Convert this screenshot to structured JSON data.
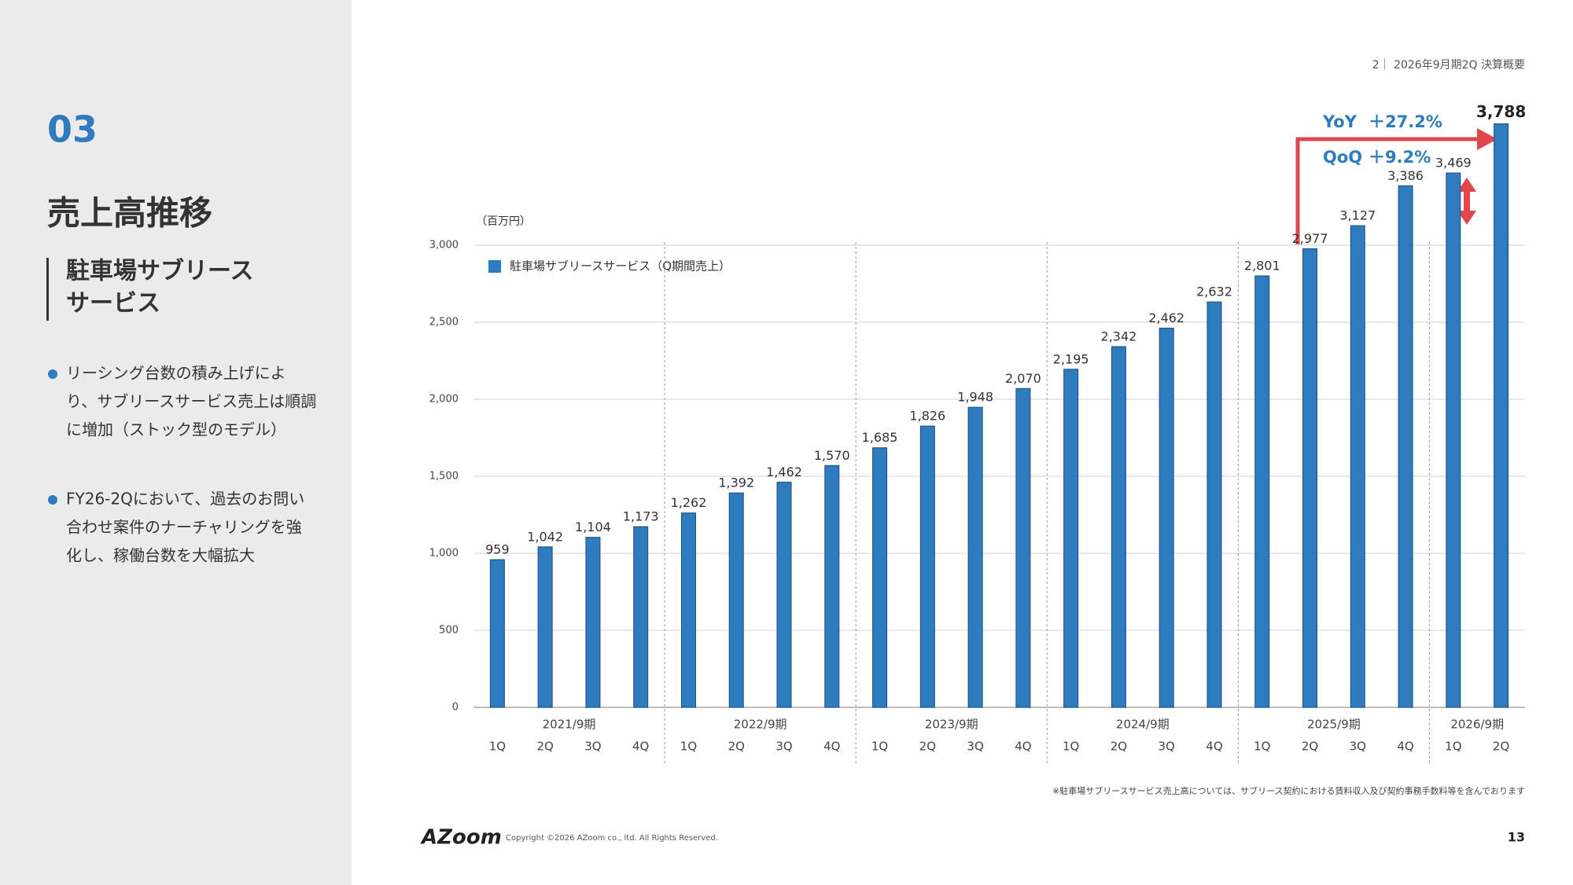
{
  "slide": {
    "header": "2｜ 2026年9月期2Q 決算概要",
    "section_number": "03",
    "title": "売上高推移",
    "subtitle_lines": [
      "駐車場サブリース",
      "サービス"
    ],
    "bullets": [
      [
        "リーシング台数の積み上げによ",
        "り、サブリースサービス売上は順調",
        "に増加（ストック型のモデル）"
      ],
      [
        "FY26-2Qにおいて、過去のお問い",
        "合わせ案件のナーチャリングを強",
        "化し、稼働台数を大幅拡大"
      ]
    ],
    "footnote": "※駐車場サブリースサービス売上高については、サブリース契約における賃料収入及び契約事務手数料等を含んでおります",
    "logo": "AZoom",
    "copyright": "Copyright ©2026 AZoom co., ltd. All Rights Reserved.",
    "page_number": "13"
  },
  "chart_data": {
    "type": "bar",
    "unit_label": "（百万円）",
    "legend_label": "駐車場サブリースサービス（Q期間売上）",
    "color": "#2e7bbf",
    "groups": [
      {
        "label": "2021/9期",
        "categories": [
          "1Q",
          "2Q",
          "3Q",
          "4Q"
        ]
      },
      {
        "label": "2022/9期",
        "categories": [
          "1Q",
          "2Q",
          "3Q",
          "4Q"
        ]
      },
      {
        "label": "2023/9期",
        "categories": [
          "1Q",
          "2Q",
          "3Q",
          "4Q"
        ]
      },
      {
        "label": "2024/9期",
        "categories": [
          "1Q",
          "2Q",
          "3Q",
          "4Q"
        ]
      },
      {
        "label": "2025/9期",
        "categories": [
          "1Q",
          "2Q",
          "3Q",
          "4Q"
        ]
      },
      {
        "label": "2026/9期",
        "categories": [
          "1Q",
          "2Q"
        ]
      }
    ],
    "values": [
      959,
      1042,
      1104,
      1173,
      1262,
      1392,
      1462,
      1570,
      1685,
      1826,
      1948,
      2070,
      2195,
      2342,
      2462,
      2632,
      2801,
      2977,
      3127,
      3386,
      3469,
      3788
    ],
    "value_labels": [
      "959",
      "1,042",
      "1,104",
      "1,173",
      "1,262",
      "1,392",
      "1,462",
      "1,570",
      "1,685",
      "1,826",
      "1,948",
      "2,070",
      "2,195",
      "2,342",
      "2,462",
      "2,632",
      "2,801",
      "2,977",
      "3,127",
      "3,386",
      "3,469",
      "3,788"
    ],
    "ylim": [
      0,
      3000
    ],
    "yticks": [
      0,
      500,
      {
        "value": 1000,
        "label": "1,000"
      },
      {
        "value": 1500,
        "label": "1,500"
      },
      {
        "value": 2000,
        "label": "2,000"
      },
      {
        "value": 2500,
        "label": "2,500"
      },
      {
        "value": 3000,
        "label": "3,000"
      }
    ],
    "grid": true,
    "annotations": [
      {
        "label": "YoY",
        "text": "＋27.2%"
      },
      {
        "label": "QoQ",
        "text": "＋9.2%"
      }
    ]
  }
}
